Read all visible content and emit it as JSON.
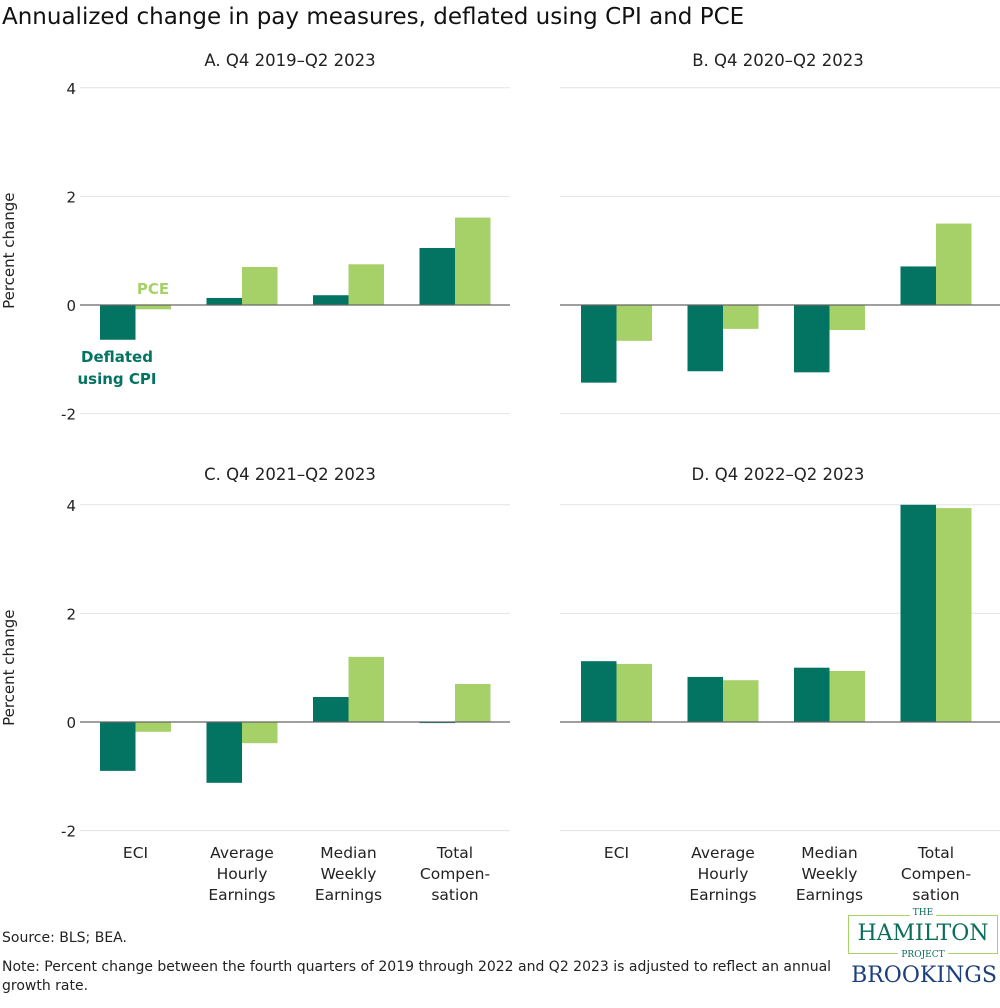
{
  "title": "Annualized change in pay measures, deflated using CPI and PCE",
  "source": "Source: BLS; BEA.",
  "note": "Note: Percent change between the fourth quarters of 2019 through 2022 and Q2 2023 is adjusted to reflect an annual growth rate.",
  "logo": {
    "the": "THE",
    "hamilton": "HAMILTON",
    "project": "PROJECT",
    "brookings": "BROOKINGS"
  },
  "colors": {
    "cpi": "#037362",
    "pce": "#a6d169",
    "grid": "#e4e4e4",
    "zero": "#666666"
  },
  "chart_data": {
    "type": "bar",
    "ylabel": "Percent change",
    "ylim": [
      -2,
      4
    ],
    "yticks": [
      -2,
      0,
      2,
      4
    ],
    "categories": [
      [
        "ECI"
      ],
      [
        "Average",
        "Hourly",
        "Earnings"
      ],
      [
        "Median",
        "Weekly",
        "Earnings"
      ],
      [
        "Total",
        "Compen-",
        "sation"
      ]
    ],
    "legend": {
      "cpi": [
        "Deflated",
        "using CPI"
      ],
      "pce": "PCE"
    },
    "panels": [
      {
        "title": "A. Q4 2019–Q2 2023",
        "series": [
          {
            "name": "Deflated using CPI",
            "values": [
              -0.64,
              0.13,
              0.18,
              1.05
            ]
          },
          {
            "name": "PCE",
            "values": [
              -0.08,
              0.7,
              0.75,
              1.61
            ]
          }
        ]
      },
      {
        "title": "B. Q4 2020–Q2 2023",
        "series": [
          {
            "name": "Deflated using CPI",
            "values": [
              -1.43,
              -1.22,
              -1.24,
              0.71
            ]
          },
          {
            "name": "PCE",
            "values": [
              -0.66,
              -0.44,
              -0.46,
              1.5
            ]
          }
        ]
      },
      {
        "title": "C. Q4 2021–Q2 2023",
        "series": [
          {
            "name": "Deflated using CPI",
            "values": [
              -0.9,
              -1.12,
              0.46,
              -0.02
            ]
          },
          {
            "name": "PCE",
            "values": [
              -0.18,
              -0.39,
              1.2,
              0.7
            ]
          }
        ]
      },
      {
        "title": "D. Q4 2022–Q2 2023",
        "series": [
          {
            "name": "Deflated using CPI",
            "values": [
              1.12,
              0.83,
              1.0,
              4.0
            ]
          },
          {
            "name": "PCE",
            "values": [
              1.07,
              0.77,
              0.94,
              3.94
            ]
          }
        ]
      }
    ]
  }
}
